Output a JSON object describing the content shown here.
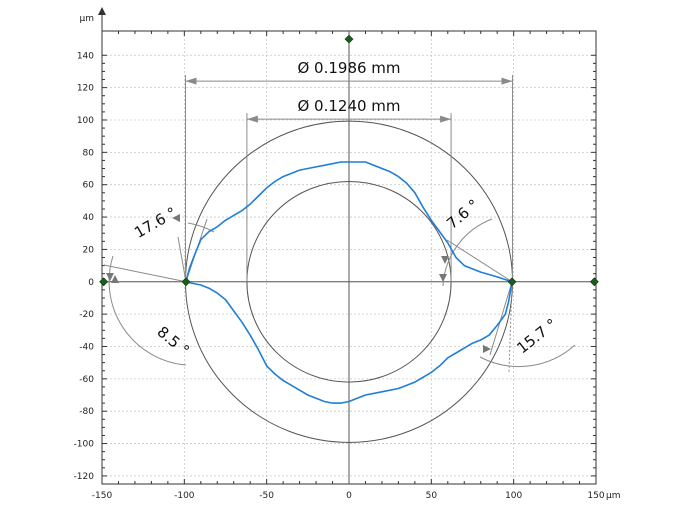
{
  "chart_data": {
    "type": "line",
    "x_unit": "µm",
    "y_unit": "µm",
    "xlim": [
      -150,
      150
    ],
    "ylim": [
      -125,
      155
    ],
    "x_ticks": [
      -150,
      -100,
      -50,
      0,
      50,
      100,
      150
    ],
    "y_ticks": [
      140,
      120,
      100,
      80,
      60,
      40,
      20,
      0,
      -20,
      -40,
      -60,
      -80,
      -100,
      -120
    ],
    "grid": true,
    "colors": {
      "profile": "#1f7fd6",
      "construction": "#555555",
      "marker": "#1c5c1c"
    },
    "series": [
      {
        "points": [
          [
            -99,
            0
          ],
          [
            -97,
            8
          ],
          [
            -94,
            16
          ],
          [
            -90,
            26
          ],
          [
            -85,
            31
          ],
          [
            -80,
            34
          ],
          [
            -75,
            38
          ],
          [
            -70,
            41
          ],
          [
            -65,
            44
          ],
          [
            -60,
            48
          ],
          [
            -55,
            53
          ],
          [
            -50,
            58
          ],
          [
            -45,
            62
          ],
          [
            -40,
            65
          ],
          [
            -35,
            67
          ],
          [
            -30,
            69
          ],
          [
            -25,
            70
          ],
          [
            -20,
            71
          ],
          [
            -15,
            72
          ],
          [
            -10,
            73
          ],
          [
            -5,
            74
          ],
          [
            0,
            74
          ],
          [
            5,
            74
          ],
          [
            10,
            74
          ],
          [
            15,
            72
          ],
          [
            20,
            70
          ],
          [
            25,
            68
          ],
          [
            30,
            65
          ],
          [
            35,
            61
          ],
          [
            40,
            55
          ],
          [
            45,
            46
          ],
          [
            50,
            38
          ],
          [
            55,
            31
          ],
          [
            60,
            24
          ],
          [
            65,
            15
          ],
          [
            70,
            10
          ],
          [
            80,
            6
          ],
          [
            90,
            3
          ],
          [
            99,
            0
          ]
        ]
      },
      {
        "points": [
          [
            -99,
            0
          ],
          [
            -95,
            -1
          ],
          [
            -90,
            -2
          ],
          [
            -85,
            -4
          ],
          [
            -80,
            -7
          ],
          [
            -75,
            -11
          ],
          [
            -70,
            -18
          ],
          [
            -65,
            -25
          ],
          [
            -60,
            -33
          ],
          [
            -55,
            -42
          ],
          [
            -50,
            -52
          ],
          [
            -45,
            -57
          ],
          [
            -40,
            -61
          ],
          [
            -35,
            -64
          ],
          [
            -30,
            -67
          ],
          [
            -25,
            -70
          ],
          [
            -20,
            -72
          ],
          [
            -15,
            -74
          ],
          [
            -10,
            -75
          ],
          [
            -5,
            -75
          ],
          [
            0,
            -74
          ],
          [
            5,
            -72
          ],
          [
            10,
            -70
          ],
          [
            20,
            -68
          ],
          [
            30,
            -66
          ],
          [
            40,
            -62
          ],
          [
            50,
            -56
          ],
          [
            55,
            -52
          ],
          [
            60,
            -47
          ],
          [
            65,
            -44
          ],
          [
            70,
            -41
          ],
          [
            75,
            -38
          ],
          [
            80,
            -36
          ],
          [
            85,
            -33
          ],
          [
            90,
            -27
          ],
          [
            95,
            -20
          ],
          [
            97,
            -12
          ],
          [
            99,
            0
          ]
        ]
      }
    ],
    "circles": [
      {
        "center": [
          0,
          0
        ],
        "radius": 99.3
      },
      {
        "center": [
          0,
          0
        ],
        "radius": 62.0
      }
    ],
    "markers": [
      [
        -149,
        0
      ],
      [
        -99,
        0
      ],
      [
        0,
        150
      ],
      [
        99,
        0
      ],
      [
        149,
        0
      ]
    ],
    "dimensions": [
      {
        "label": "Ø 0.1986 mm",
        "x1": -99.3,
        "x2": 99.3,
        "y": 124
      },
      {
        "label": "Ø 0.1240 mm",
        "x1": -62.0,
        "x2": 62.0,
        "y": 100.5
      }
    ],
    "angles": [
      {
        "label": "17.6 °"
      },
      {
        "label": "8.5 °"
      },
      {
        "label": "7.6 °"
      },
      {
        "label": "15.7 °"
      }
    ]
  }
}
